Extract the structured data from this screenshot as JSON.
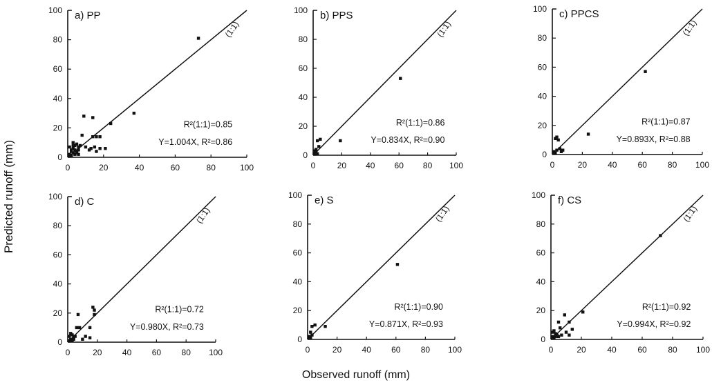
{
  "figure": {
    "ylabel": "Predicted runoff (mm)",
    "xlabel": "Observed runoff (mm)",
    "line_label": "(1:1)"
  },
  "chart_data": [
    {
      "type": "scatter",
      "title": "a) PP",
      "xlim": [
        0,
        100
      ],
      "ylim": [
        0,
        100
      ],
      "xticks": [
        "0",
        "20",
        "40",
        "60",
        "80",
        "100"
      ],
      "yticks": [
        "0",
        "20",
        "40",
        "60",
        "80",
        "100"
      ],
      "stats": [
        "R²(1:1)=0.85",
        "Y=1.004X, R²=0.86"
      ],
      "points": [
        [
          73,
          81
        ],
        [
          37,
          30
        ],
        [
          24,
          23
        ],
        [
          18,
          14
        ],
        [
          16,
          14
        ],
        [
          14,
          14
        ],
        [
          9,
          28
        ],
        [
          14,
          27
        ],
        [
          8,
          15
        ],
        [
          10,
          7
        ],
        [
          13,
          6
        ],
        [
          15,
          7
        ],
        [
          18,
          6
        ],
        [
          21,
          6
        ],
        [
          16,
          4
        ],
        [
          12,
          5
        ],
        [
          3,
          10
        ],
        [
          4,
          8
        ],
        [
          5,
          9
        ],
        [
          6,
          7
        ],
        [
          7,
          8
        ],
        [
          1,
          2
        ],
        [
          2,
          4
        ],
        [
          2,
          5
        ],
        [
          3,
          6
        ],
        [
          4,
          5
        ],
        [
          5,
          4
        ],
        [
          3,
          3
        ],
        [
          4,
          2
        ],
        [
          5,
          3
        ],
        [
          6,
          2
        ],
        [
          1,
          1
        ],
        [
          2,
          1
        ],
        [
          1,
          7
        ],
        [
          3,
          8
        ],
        [
          6,
          5
        ]
      ]
    },
    {
      "type": "scatter",
      "title": "b) PPS",
      "xlim": [
        0,
        100
      ],
      "ylim": [
        0,
        100
      ],
      "xticks": [
        "0",
        "20",
        "40",
        "60",
        "80",
        "100"
      ],
      "yticks": [
        "0",
        "20",
        "40",
        "60",
        "80",
        "100"
      ],
      "stats": [
        "R²(1:1)=0.86",
        "Y=0.834X, R²=0.90"
      ],
      "points": [
        [
          61,
          53
        ],
        [
          19,
          10
        ],
        [
          5,
          11
        ],
        [
          3,
          10
        ],
        [
          4,
          6
        ],
        [
          1,
          3
        ],
        [
          2,
          2
        ],
        [
          1,
          1
        ],
        [
          2,
          4
        ],
        [
          3,
          1
        ]
      ]
    },
    {
      "type": "scatter",
      "title": "c) PPCS",
      "xlim": [
        0,
        100
      ],
      "ylim": [
        0,
        100
      ],
      "xticks": [
        "0",
        "20",
        "40",
        "60",
        "80",
        "100"
      ],
      "yticks": [
        "0",
        "20",
        "40",
        "60",
        "80",
        "100"
      ],
      "stats": [
        "R²(1:1)=0.87",
        "Y=0.893X, R²=0.88"
      ],
      "points": [
        [
          62,
          57
        ],
        [
          24,
          14
        ],
        [
          3,
          12
        ],
        [
          4,
          10
        ],
        [
          2,
          11
        ],
        [
          5,
          4
        ],
        [
          7,
          3
        ],
        [
          1,
          2
        ],
        [
          2,
          1
        ],
        [
          3,
          3
        ],
        [
          6,
          2
        ]
      ]
    },
    {
      "type": "scatter",
      "title": "d) C",
      "xlim": [
        0,
        100
      ],
      "ylim": [
        0,
        100
      ],
      "xticks": [
        "0",
        "20",
        "40",
        "60",
        "80",
        "100"
      ],
      "yticks": [
        "0",
        "20",
        "40",
        "60",
        "80",
        "100"
      ],
      "stats": [
        "R²(1:1)=0.72",
        "Y=0.980X, R²=0.73"
      ],
      "points": [
        [
          18,
          22
        ],
        [
          18,
          19
        ],
        [
          17,
          24
        ],
        [
          7,
          19
        ],
        [
          6,
          10
        ],
        [
          8,
          10
        ],
        [
          15,
          10
        ],
        [
          15,
          3
        ],
        [
          12,
          4
        ],
        [
          10,
          2
        ],
        [
          3,
          5
        ],
        [
          4,
          3
        ],
        [
          5,
          4
        ],
        [
          2,
          2
        ],
        [
          1,
          4
        ],
        [
          2,
          6
        ],
        [
          1,
          1
        ],
        [
          3,
          1
        ],
        [
          4,
          2
        ]
      ]
    },
    {
      "type": "scatter",
      "title": "e) S",
      "xlim": [
        0,
        100
      ],
      "ylim": [
        0,
        100
      ],
      "xticks": [
        "0",
        "20",
        "40",
        "60",
        "80",
        "100"
      ],
      "yticks": [
        "0",
        "20",
        "40",
        "60",
        "80",
        "100"
      ],
      "stats": [
        "R²(1:1)=0.90",
        "Y=0.871X, R²=0.93"
      ],
      "points": [
        [
          61,
          52
        ],
        [
          12,
          9
        ],
        [
          5,
          10
        ],
        [
          3,
          9
        ],
        [
          2,
          5
        ],
        [
          1,
          2
        ],
        [
          2,
          1
        ],
        [
          3,
          3
        ]
      ]
    },
    {
      "type": "scatter",
      "title": "f) CS",
      "xlim": [
        0,
        100
      ],
      "ylim": [
        0,
        100
      ],
      "xticks": [
        "0",
        "20",
        "40",
        "60",
        "80",
        "100"
      ],
      "yticks": [
        "0",
        "20",
        "40",
        "60",
        "80",
        "100"
      ],
      "stats": [
        "R²(1:1)=0.92",
        "Y=0.994X, R²=0.92"
      ],
      "points": [
        [
          72,
          72
        ],
        [
          21,
          19
        ],
        [
          9,
          17
        ],
        [
          12,
          12
        ],
        [
          5,
          12
        ],
        [
          6,
          8
        ],
        [
          10,
          5
        ],
        [
          14,
          7
        ],
        [
          12,
          3
        ],
        [
          3,
          4
        ],
        [
          2,
          6
        ],
        [
          4,
          3
        ],
        [
          1,
          2
        ],
        [
          2,
          1
        ],
        [
          3,
          2
        ],
        [
          5,
          2
        ],
        [
          7,
          3
        ],
        [
          1,
          5
        ]
      ]
    }
  ]
}
